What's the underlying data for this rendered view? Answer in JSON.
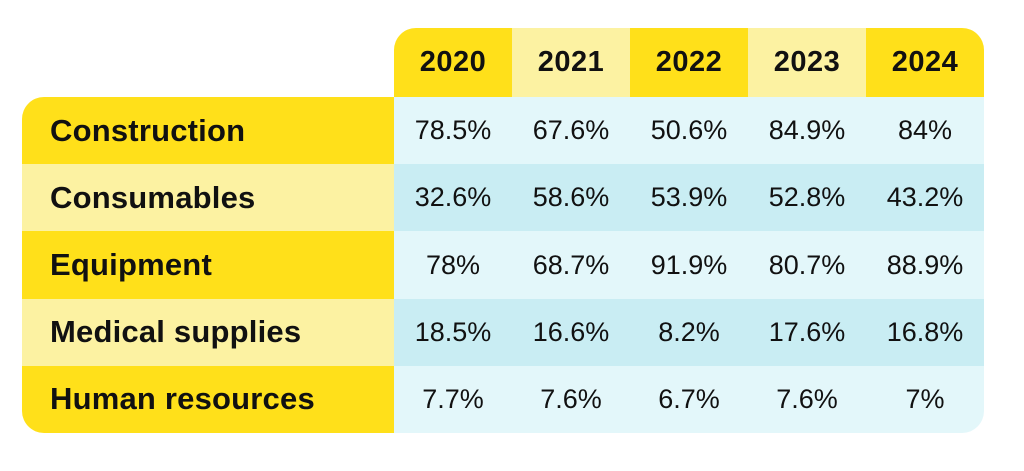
{
  "chart_data": {
    "type": "table",
    "columns": [
      "2020",
      "2021",
      "2022",
      "2023",
      "2024"
    ],
    "rows": [
      {
        "label": "Construction",
        "values": [
          "78.5%",
          "67.6%",
          "50.6%",
          "84.9%",
          "84%"
        ]
      },
      {
        "label": "Consumables",
        "values": [
          "32.6%",
          "58.6%",
          "53.9%",
          "52.8%",
          "43.2%"
        ]
      },
      {
        "label": "Equipment",
        "values": [
          "78%",
          "68.7%",
          "91.9%",
          "80.7%",
          "88.9%"
        ]
      },
      {
        "label": "Medical supplies",
        "values": [
          "18.5%",
          "16.6%",
          "8.2%",
          "17.6%",
          "16.8%"
        ]
      },
      {
        "label": "Human resources",
        "values": [
          "7.7%",
          "7.6%",
          "6.7%",
          "7.6%",
          "7%"
        ]
      }
    ]
  },
  "colors": {
    "yellow_bright": "#FFE01A",
    "yellow_light": "#FCF2A2",
    "blue_light": "#E3F7FA",
    "blue_mid": "#C9EDF3",
    "text": "#111111",
    "background": "#FFFFFF"
  }
}
